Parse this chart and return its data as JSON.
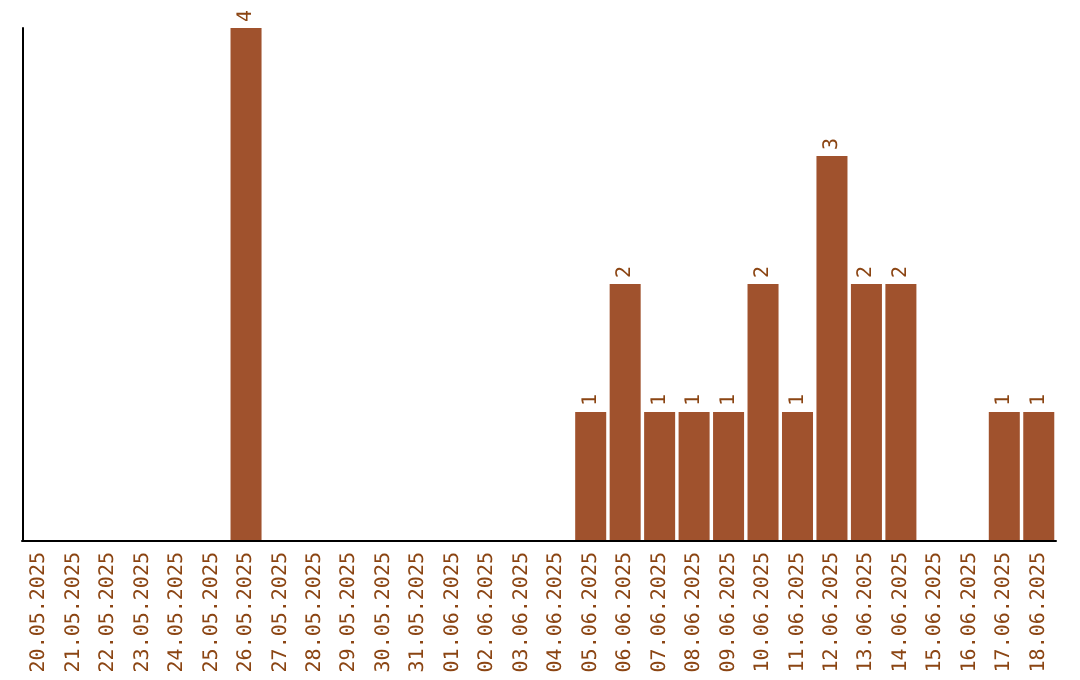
{
  "chart_data": {
    "type": "bar",
    "categories": [
      "20.05.2025",
      "21.05.2025",
      "22.05.2025",
      "23.05.2025",
      "24.05.2025",
      "25.05.2025",
      "26.05.2025",
      "27.05.2025",
      "28.05.2025",
      "29.05.2025",
      "30.05.2025",
      "31.05.2025",
      "01.06.2025",
      "02.06.2025",
      "03.06.2025",
      "04.06.2025",
      "05.06.2025",
      "06.06.2025",
      "07.06.2025",
      "08.06.2025",
      "09.06.2025",
      "10.06.2025",
      "11.06.2025",
      "12.06.2025",
      "13.06.2025",
      "14.06.2025",
      "15.06.2025",
      "16.06.2025",
      "17.06.2025",
      "18.06.2025"
    ],
    "values": [
      0,
      0,
      0,
      0,
      0,
      0,
      4,
      0,
      0,
      0,
      0,
      0,
      0,
      0,
      0,
      0,
      1,
      2,
      1,
      1,
      1,
      2,
      1,
      3,
      2,
      2,
      0,
      0,
      1,
      1
    ],
    "value_labels": [
      null,
      null,
      null,
      null,
      null,
      null,
      "4",
      null,
      null,
      null,
      null,
      null,
      null,
      null,
      null,
      null,
      "1",
      "2",
      "1",
      "1",
      "1",
      "2",
      "1",
      "3",
      "2",
      "2",
      null,
      null,
      "1",
      "1"
    ],
    "color": "#a0522d",
    "grid": false,
    "tick_labels": "x"
  }
}
